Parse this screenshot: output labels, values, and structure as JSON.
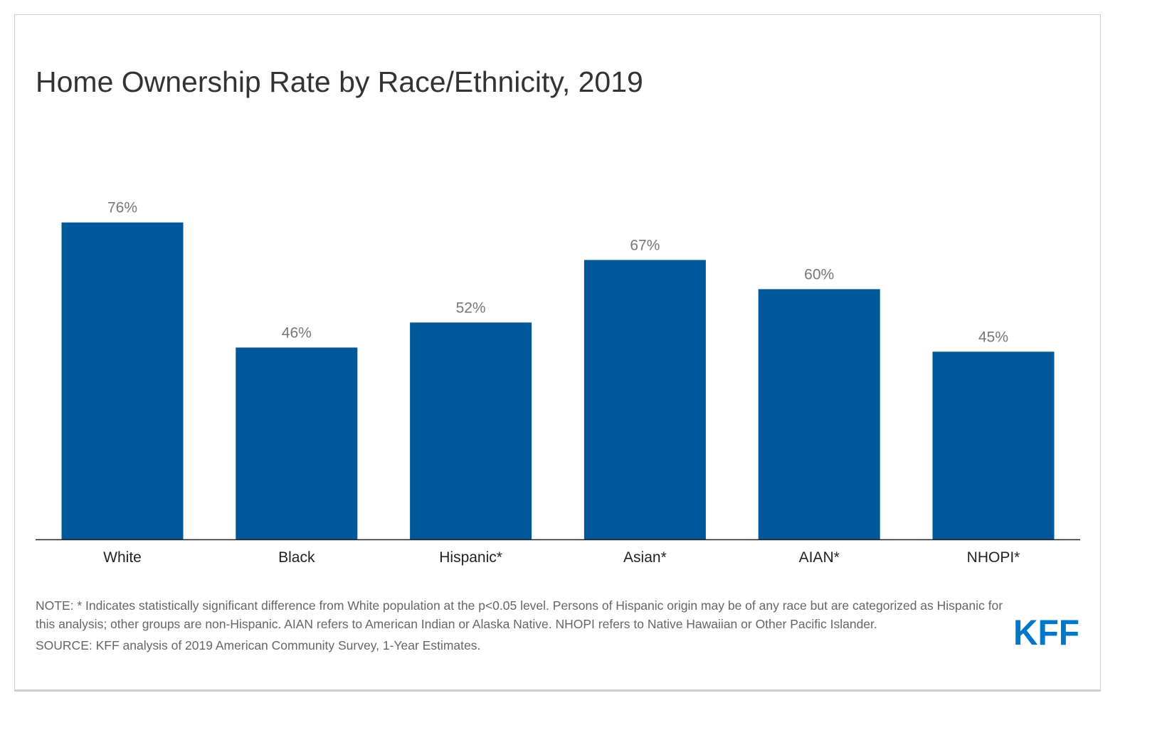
{
  "title": "Home Ownership Rate by Race/Ethnicity, 2019",
  "chart_data": {
    "type": "bar",
    "title": "Home Ownership Rate by Race/Ethnicity, 2019",
    "categories": [
      "White",
      "Black",
      "Hispanic*",
      "Asian*",
      "AIAN*",
      "NHOPI*"
    ],
    "values": [
      76,
      46,
      52,
      67,
      60,
      45
    ],
    "value_labels": [
      "76%",
      "46%",
      "52%",
      "67%",
      "60%",
      "45%"
    ],
    "unit": "%",
    "ylim": [
      0,
      100
    ],
    "grid": false,
    "bar_color": "#00589a"
  },
  "note": "NOTE: * Indicates statistically significant difference from White population at the p<0.05 level. Persons of Hispanic origin may be of any race but are categorized as Hispanic for this analysis; other groups are non-Hispanic. AIAN refers to American Indian or Alaska Native. NHOPI refers to Native Hawaiian or Other Pacific Islander.",
  "source": "SOURCE: KFF analysis of 2019 American Community Survey, 1-Year Estimates.",
  "logo": {
    "text": "KFF",
    "color": "#0077c8"
  }
}
